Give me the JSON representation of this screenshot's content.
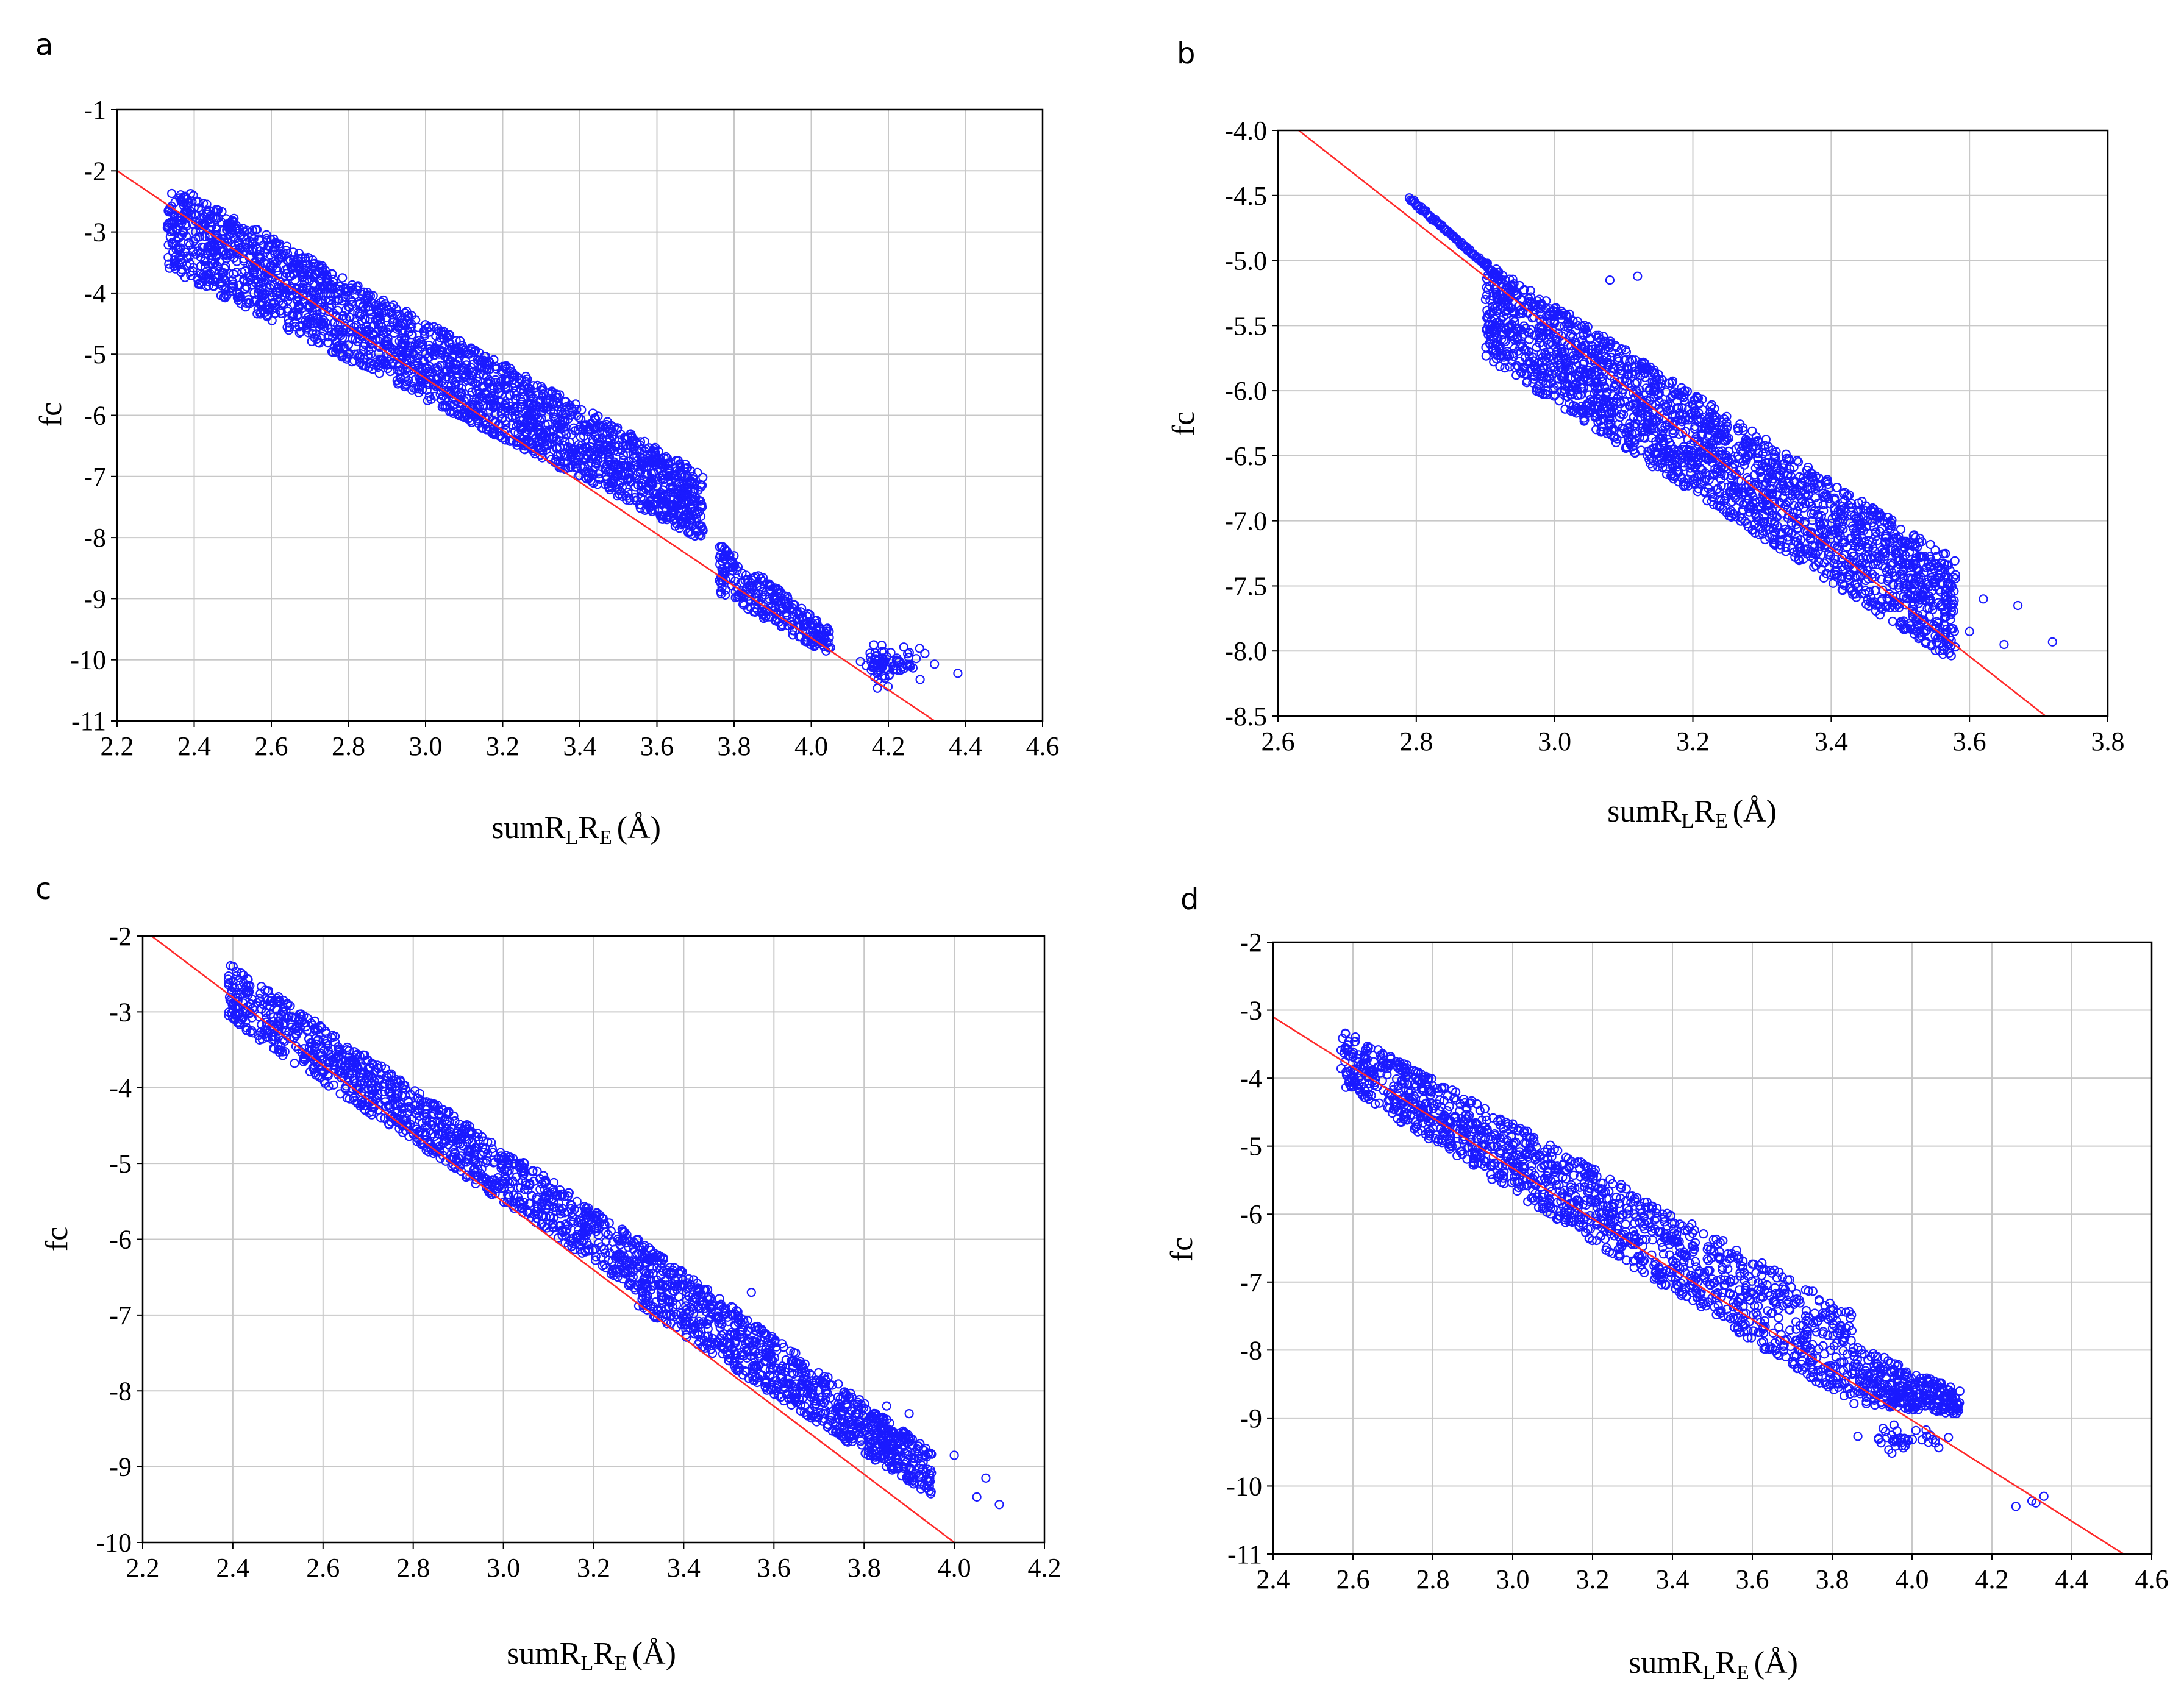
{
  "colors": {
    "points": "#1a1aff",
    "fit_line": "#ff2a2a",
    "grid": "#c8c8c8",
    "frame": "#000000"
  },
  "chart_data": [
    {
      "panel": "a",
      "type": "scatter",
      "xlabel": {
        "main": "sumR",
        "sub1": "L",
        "mid": "R",
        "sub2": "E",
        "unit": "(Å)"
      },
      "ylabel": "fc",
      "xlim": [
        2.2,
        4.6
      ],
      "ylim": [
        -11,
        -1
      ],
      "xticks": [
        "2.2",
        "2.4",
        "2.6",
        "2.8",
        "3.0",
        "3.2",
        "3.4",
        "3.6",
        "3.8",
        "4.0",
        "4.2",
        "4.4",
        "4.6"
      ],
      "yticks": [
        "-1",
        "-2",
        "-3",
        "-4",
        "-5",
        "-6",
        "-7",
        "-8",
        "-9",
        "-10",
        "-11"
      ],
      "fit_line": [
        [
          2.2,
          -2.0
        ],
        [
          4.32,
          -11.0
        ]
      ],
      "bands": [
        {
          "x0": 2.33,
          "x1": 3.72,
          "yTop0": -2.15,
          "yTop1": -6.95,
          "yBot0": -3.6,
          "yBot1": -8.05
        },
        {
          "x0": 3.76,
          "x1": 4.05,
          "yTop0": -8.1,
          "yTop1": -9.5,
          "yBot0": -8.9,
          "yBot1": -9.95
        }
      ],
      "clusters": [
        {
          "x": 4.17,
          "y": -10.05,
          "sx": 0.02,
          "sy": 0.1
        },
        {
          "x": 4.22,
          "y": -10.1,
          "sx": 0.04,
          "sy": 0.15
        }
      ],
      "outliers": [
        [
          4.38,
          -10.22
        ],
        [
          4.25,
          -9.9
        ],
        [
          4.05,
          -9.8
        ]
      ]
    },
    {
      "panel": "b",
      "type": "scatter",
      "xlabel": {
        "main": "sumR",
        "sub1": "L",
        "mid": "R",
        "sub2": "E",
        "unit": "(Å)"
      },
      "ylabel": "fc",
      "xlim": [
        2.6,
        3.8
      ],
      "ylim": [
        -8.5,
        -4.0
      ],
      "xticks": [
        "2.6",
        "2.8",
        "3.0",
        "3.2",
        "3.4",
        "3.6",
        "3.8"
      ],
      "yticks": [
        "-4.0",
        "-4.5",
        "-5.0",
        "-5.5",
        "-6.0",
        "-6.5",
        "-7.0",
        "-7.5",
        "-8.0",
        "-8.5"
      ],
      "fit_line": [
        [
          2.63,
          -4.0
        ],
        [
          3.71,
          -8.5
        ]
      ],
      "lines": [
        {
          "x0": 2.79,
          "y0": -4.52,
          "x1": 2.91,
          "y1": -5.08
        }
      ],
      "bands": [
        {
          "x0": 2.9,
          "x1": 3.58,
          "yTop0": -5.0,
          "yTop1": -7.3,
          "yBot0": -5.75,
          "yBot1": -8.1
        }
      ],
      "outliers": [
        [
          3.72,
          -7.93
        ],
        [
          3.67,
          -7.65
        ],
        [
          3.62,
          -7.6
        ],
        [
          3.6,
          -7.85
        ],
        [
          3.65,
          -7.95
        ],
        [
          3.55,
          -7.45
        ],
        [
          3.5,
          -7.3
        ],
        [
          3.12,
          -5.12
        ],
        [
          3.08,
          -5.15
        ]
      ]
    },
    {
      "panel": "c",
      "type": "scatter",
      "xlabel": {
        "main": "sumR",
        "sub1": "L",
        "mid": "R",
        "sub2": "E",
        "unit": "(Å)"
      },
      "ylabel": "fc",
      "xlim": [
        2.2,
        4.2
      ],
      "ylim": [
        -10,
        -2
      ],
      "xticks": [
        "2.2",
        "2.4",
        "2.6",
        "2.8",
        "3.0",
        "3.2",
        "3.4",
        "3.6",
        "3.8",
        "4.0",
        "4.2"
      ],
      "yticks": [
        "-2",
        "-3",
        "-4",
        "-5",
        "-6",
        "-7",
        "-8",
        "-9",
        "-10"
      ],
      "fit_line": [
        [
          2.22,
          -2.0
        ],
        [
          4.0,
          -10.0
        ]
      ],
      "bands": [
        {
          "x0": 2.39,
          "x1": 3.3,
          "yTop0": -2.35,
          "yTop1": -6.0,
          "yBot0": -3.1,
          "yBot1": -6.7
        },
        {
          "x0": 3.3,
          "x1": 3.95,
          "yTop0": -6.0,
          "yTop1": -8.8,
          "yBot0": -6.9,
          "yBot1": -9.4
        }
      ],
      "outliers": [
        [
          4.1,
          -9.5
        ],
        [
          4.07,
          -9.15
        ],
        [
          4.05,
          -9.4
        ],
        [
          4.0,
          -8.85
        ],
        [
          3.9,
          -8.3
        ],
        [
          3.85,
          -8.2
        ],
        [
          3.55,
          -6.7
        ]
      ]
    },
    {
      "panel": "d",
      "type": "scatter",
      "xlabel": {
        "main": "sumR",
        "sub1": "L",
        "mid": "R",
        "sub2": "E",
        "unit": "(Å)"
      },
      "ylabel": "fc",
      "xlim": [
        2.4,
        4.6
      ],
      "ylim": [
        -11,
        -2
      ],
      "xticks": [
        "2.4",
        "2.6",
        "2.8",
        "3.0",
        "3.2",
        "3.4",
        "3.6",
        "3.8",
        "4.0",
        "4.2",
        "4.4",
        "4.6"
      ],
      "yticks": [
        "-2",
        "-3",
        "-4",
        "-5",
        "-6",
        "-7",
        "-8",
        "-9",
        "-10",
        "-11"
      ],
      "fit_line": [
        [
          2.4,
          -3.1
        ],
        [
          4.53,
          -11.0
        ]
      ],
      "bands": [
        {
          "x0": 2.57,
          "x1": 3.85,
          "yTop0": -3.25,
          "yTop1": -7.45,
          "yBot0": -4.1,
          "yBot1": -8.8
        },
        {
          "x0": 3.85,
          "x1": 4.12,
          "yTop0": -7.9,
          "yTop1": -8.6,
          "yBot0": -8.8,
          "yBot1": -8.95
        }
      ],
      "clusters": [
        {
          "x": 3.98,
          "y": -9.3,
          "sx": 0.05,
          "sy": 0.08
        }
      ],
      "outliers": [
        [
          4.26,
          -10.3
        ],
        [
          4.3,
          -10.22
        ],
        [
          4.33,
          -10.15
        ],
        [
          4.31,
          -10.25
        ]
      ]
    }
  ]
}
